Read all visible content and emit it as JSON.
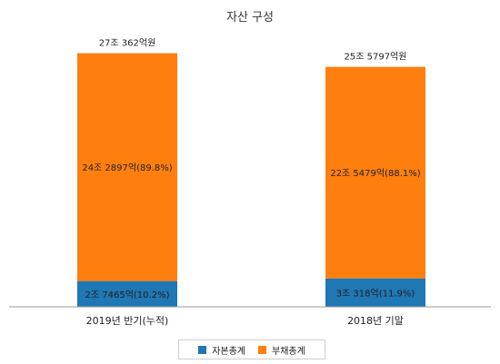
{
  "chart_data": {
    "type": "bar",
    "stacked": true,
    "title": "자산 구성",
    "categories": [
      "2019년 반기(누적)",
      "2018년 기말"
    ],
    "totals_labels": [
      "27조 362억원",
      "25조 5797억원"
    ],
    "series": [
      {
        "name": "자본총계",
        "color": "#1f77b4",
        "values": [
          27465,
          30318
        ],
        "data_labels": [
          "2조 7465억(10.2%)",
          "3조 318억(11.9%)"
        ]
      },
      {
        "name": "부채총계",
        "color": "#ff7f0e",
        "values": [
          242897,
          225479
        ],
        "data_labels": [
          "24조 2897억(89.8%)",
          "22조 5479억(88.1%)"
        ]
      }
    ],
    "unit": "억원",
    "ylim": [
      0,
      300000
    ],
    "legend_position": "bottom",
    "grid": false
  }
}
